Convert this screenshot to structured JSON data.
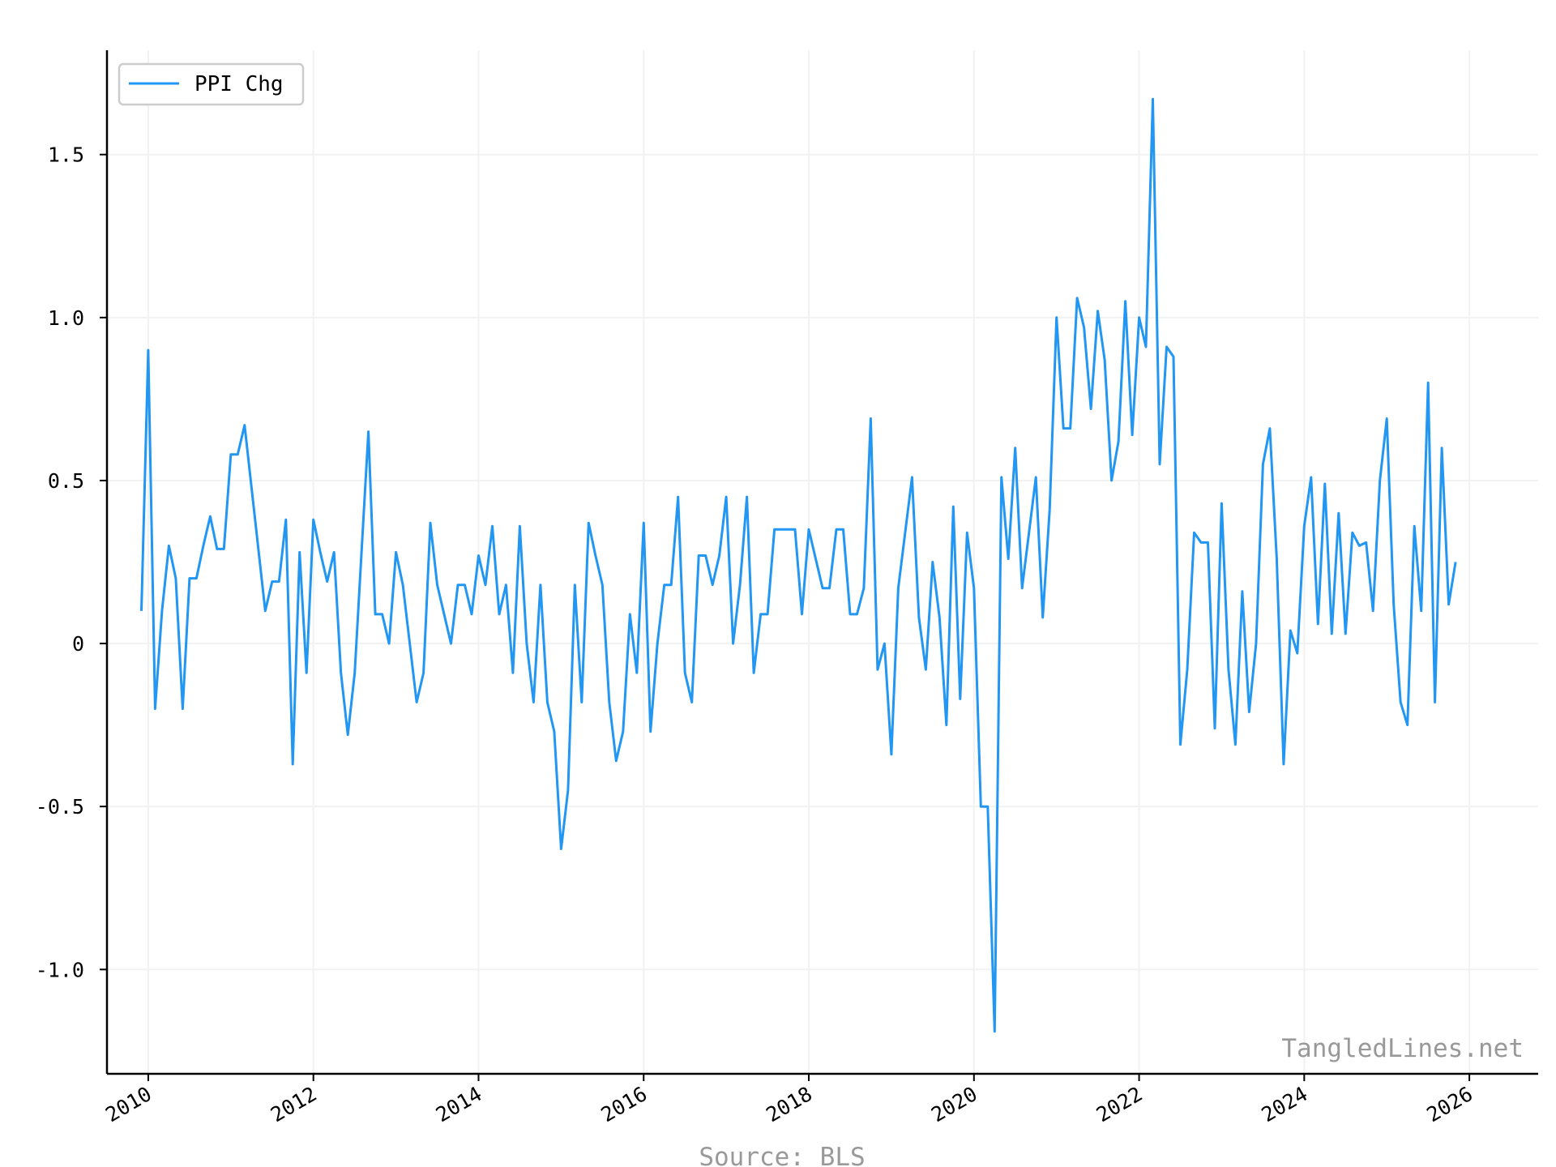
{
  "chart_data": {
    "type": "line",
    "title": "",
    "xlabel": "",
    "ylabel": "",
    "xlim": [
      "2009-07-01",
      "2026-11-01"
    ],
    "ylim": [
      -1.32,
      1.82
    ],
    "grid": true,
    "legend_position": "top-left",
    "x_ticks": [
      "2010",
      "2012",
      "2014",
      "2016",
      "2018",
      "2020",
      "2022",
      "2024",
      "2026"
    ],
    "y_ticks": [
      {
        "value": -1.0,
        "label": "-1.0"
      },
      {
        "value": -0.5,
        "label": "-0.5"
      },
      {
        "value": 0,
        "label": "0"
      },
      {
        "value": 0.5,
        "label": "0.5"
      },
      {
        "value": 1.0,
        "label": "1.0"
      },
      {
        "value": 1.5,
        "label": "1.5"
      }
    ],
    "series": [
      {
        "name": "PPI Chg",
        "color": "#2196F3",
        "start": "2009-12",
        "values": [
          0.1,
          0.9,
          -0.2,
          0.1,
          0.3,
          0.2,
          -0.2,
          0.2,
          0.2,
          0.3,
          0.39,
          0.29,
          0.29,
          0.58,
          0.58,
          0.67,
          0.48,
          0.29,
          0.1,
          0.19,
          0.19,
          0.38,
          -0.37,
          0.28,
          -0.09,
          0.38,
          0.28,
          0.19,
          0.28,
          -0.09,
          -0.28,
          -0.09,
          0.28,
          0.65,
          0.09,
          0.09,
          0.0,
          0.28,
          0.18,
          0.0,
          -0.18,
          -0.09,
          0.37,
          0.18,
          0.09,
          0.0,
          0.18,
          0.18,
          0.09,
          0.27,
          0.18,
          0.36,
          0.09,
          0.18,
          -0.09,
          0.36,
          0.0,
          -0.18,
          0.18,
          -0.18,
          -0.27,
          -0.63,
          -0.45,
          0.18,
          -0.18,
          0.37,
          0.27,
          0.18,
          -0.18,
          -0.36,
          -0.27,
          0.09,
          -0.09,
          0.37,
          -0.27,
          0.0,
          0.18,
          0.18,
          0.45,
          -0.09,
          -0.18,
          0.27,
          0.27,
          0.18,
          0.27,
          0.45,
          0.0,
          0.18,
          0.45,
          -0.09,
          0.09,
          0.09,
          0.35,
          0.35,
          0.35,
          0.35,
          0.09,
          0.35,
          0.26,
          0.17,
          0.17,
          0.35,
          0.35,
          0.09,
          0.09,
          0.17,
          0.69,
          -0.08,
          0.0,
          -0.34,
          0.17,
          0.34,
          0.51,
          0.08,
          -0.08,
          0.25,
          0.08,
          -0.25,
          0.42,
          -0.17,
          0.34,
          0.17,
          -0.5,
          -0.5,
          -1.19,
          0.51,
          0.26,
          0.6,
          0.17,
          0.34,
          0.51,
          0.08,
          0.41,
          1.0,
          0.66,
          0.66,
          1.06,
          0.97,
          0.72,
          1.02,
          0.87,
          0.5,
          0.62,
          1.05,
          0.64,
          1.0,
          0.91,
          1.67,
          0.55,
          0.91,
          0.88,
          -0.31,
          -0.08,
          0.34,
          0.31,
          0.31,
          -0.26,
          0.43,
          -0.08,
          -0.31,
          0.16,
          -0.21,
          0.0,
          0.55,
          0.66,
          0.26,
          -0.37,
          0.04,
          -0.03,
          0.36,
          0.51,
          0.06,
          0.49,
          0.03,
          0.4,
          0.03,
          0.34,
          0.3,
          0.31,
          0.1,
          0.5,
          0.69,
          0.12,
          -0.18,
          -0.25,
          0.36,
          0.1,
          0.8,
          -0.18,
          0.6,
          0.12,
          0.25
        ]
      }
    ]
  },
  "watermark": "TangledLines.net",
  "source": "Source: BLS"
}
